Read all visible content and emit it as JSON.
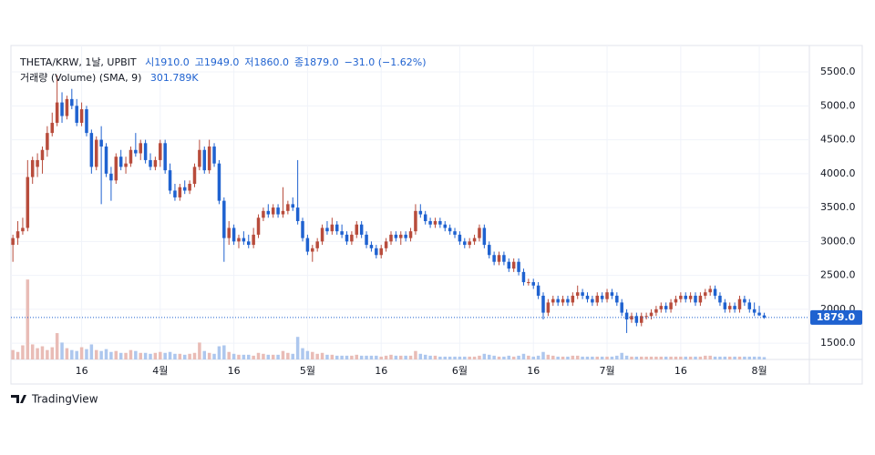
{
  "chart_data": {
    "type": "candlestick",
    "title": "THETA/KRW, 1날, UPBIT",
    "ohlc_legend": [
      "시1910.0",
      "고1949.0",
      "저1860.0",
      "종1879.0",
      "−31.0 (−1.62%)"
    ],
    "volume_title": "거래량 (Volume) (SMA, 9)",
    "volume_sma": "301.789K",
    "brand": "TradingView",
    "up_color": "#b84c3c",
    "down_color": "#1f62d0",
    "volume_up_color": "#e9bcb6",
    "volume_down_color": "#adc7ee",
    "grid": true,
    "xlim": [
      -0.4,
      162.2
    ],
    "xticks": [
      {
        "value": 14,
        "label": "16"
      },
      {
        "value": 30,
        "label": "4월"
      },
      {
        "value": 45,
        "label": "16"
      },
      {
        "value": 60,
        "label": "5월"
      },
      {
        "value": 75,
        "label": "16"
      },
      {
        "value": 91,
        "label": "6월"
      },
      {
        "value": 106,
        "label": "16"
      },
      {
        "value": 121,
        "label": "7월"
      },
      {
        "value": 136,
        "label": "16"
      },
      {
        "value": 152,
        "label": "8월"
      }
    ],
    "ylim": [
      1260,
      5890
    ],
    "yticks": [
      {
        "value": 1500,
        "label": "1500.0"
      },
      {
        "value": 2000,
        "label": "2000.0"
      },
      {
        "value": 2500,
        "label": "2500.0"
      },
      {
        "value": 3000,
        "label": "3000.0"
      },
      {
        "value": 3500,
        "label": "3500.0"
      },
      {
        "value": 4000,
        "label": "4000.0"
      },
      {
        "value": 4500,
        "label": "4500.0"
      },
      {
        "value": 5000,
        "label": "5000.0"
      },
      {
        "value": 5500,
        "label": "5500.0"
      }
    ],
    "vlim": [
      0,
      9000
    ],
    "last_price": {
      "value": 1879,
      "label": "1879.0"
    },
    "open": [
      2950,
      3050,
      3150,
      3200,
      3950,
      4100,
      4200,
      4350,
      4600,
      4750,
      5050,
      4850,
      5100,
      5000,
      4750,
      4950,
      4600,
      4100,
      4500,
      4400,
      4000,
      3900,
      4250,
      4100,
      4150,
      4350,
      4300,
      4450,
      4200,
      4100,
      4200,
      4450,
      4050,
      3750,
      3650,
      3800,
      3750,
      3850,
      4100,
      4350,
      4050,
      4400,
      4150,
      3600,
      3050,
      3200,
      3000,
      3050,
      3000,
      2950,
      3100,
      3350,
      3450,
      3400,
      3500,
      3400,
      3450,
      3550,
      3500,
      3300,
      3050,
      2850,
      2900,
      3000,
      3200,
      3150,
      3250,
      3150,
      3100,
      3000,
      3100,
      3250,
      3100,
      2950,
      2900,
      2800,
      2900,
      3000,
      3100,
      3050,
      3100,
      3050,
      3150,
      3450,
      3400,
      3300,
      3250,
      3300,
      3250,
      3200,
      3150,
      3100,
      3000,
      2950,
      3000,
      3050,
      3200,
      2950,
      2800,
      2700,
      2800,
      2700,
      2600,
      2700,
      2550,
      2400,
      2400,
      2350,
      2200,
      1950,
      2100,
      2150,
      2100,
      2150,
      2100,
      2200,
      2250,
      2200,
      2150,
      2100,
      2200,
      2150,
      2250,
      2200,
      2100,
      1950,
      1850,
      1900,
      1800,
      1900,
      1900,
      1950,
      2000,
      2050,
      2000,
      2100,
      2150,
      2200,
      2150,
      2200,
      2100,
      2200,
      2250,
      2300,
      2200,
      2100,
      2000,
      2050,
      2000,
      2150,
      2100,
      2000,
      1950,
      1910
    ],
    "high": [
      3100,
      3300,
      3350,
      4200,
      4250,
      4300,
      4400,
      4700,
      4900,
      5450,
      5200,
      5150,
      5250,
      5100,
      5050,
      5000,
      4650,
      4550,
      4700,
      4450,
      4100,
      4300,
      4350,
      4250,
      4400,
      4600,
      4500,
      4500,
      4300,
      4250,
      4500,
      4500,
      4150,
      3850,
      3850,
      3900,
      3900,
      4150,
      4500,
      4400,
      4500,
      4450,
      4200,
      3650,
      3300,
      3250,
      3100,
      3150,
      3100,
      3200,
      3400,
      3500,
      3550,
      3550,
      3550,
      3800,
      3600,
      3650,
      4200,
      3350,
      3100,
      2950,
      3050,
      3250,
      3300,
      3350,
      3300,
      3250,
      3150,
      3150,
      3300,
      3300,
      3150,
      3000,
      2950,
      2950,
      3050,
      3150,
      3150,
      3150,
      3150,
      3200,
      3550,
      3550,
      3450,
      3350,
      3350,
      3350,
      3300,
      3250,
      3200,
      3150,
      3050,
      3050,
      3100,
      3250,
      3250,
      3000,
      2850,
      2850,
      2850,
      2750,
      2750,
      2750,
      2600,
      2450,
      2450,
      2400,
      2250,
      2150,
      2200,
      2200,
      2200,
      2200,
      2250,
      2350,
      2300,
      2250,
      2200,
      2250,
      2250,
      2300,
      2300,
      2250,
      2150,
      2000,
      1950,
      1950,
      1950,
      1950,
      2000,
      2050,
      2100,
      2100,
      2150,
      2200,
      2250,
      2250,
      2250,
      2250,
      2250,
      2300,
      2350,
      2350,
      2250,
      2150,
      2100,
      2100,
      2200,
      2200,
      2150,
      2100,
      2050,
      1949
    ],
    "low": [
      2700,
      2950,
      3100,
      3150,
      3850,
      3950,
      4000,
      4250,
      4550,
      4700,
      4750,
      4800,
      4950,
      4700,
      4700,
      4550,
      4000,
      4050,
      3550,
      3950,
      3600,
      3850,
      4050,
      4000,
      4100,
      4250,
      4200,
      4150,
      4050,
      4050,
      4100,
      4000,
      3700,
      3600,
      3600,
      3700,
      3700,
      3800,
      4050,
      4000,
      4000,
      4100,
      3550,
      2700,
      2950,
      2950,
      2900,
      2950,
      2900,
      2900,
      3050,
      3300,
      3350,
      3350,
      3350,
      3350,
      3400,
      3450,
      3250,
      3000,
      2800,
      2700,
      2850,
      2950,
      3100,
      3100,
      3100,
      3050,
      2950,
      2950,
      3050,
      3050,
      2900,
      2850,
      2750,
      2750,
      2850,
      2950,
      3000,
      2950,
      3000,
      3000,
      3100,
      3350,
      3250,
      3200,
      3200,
      3200,
      3150,
      3100,
      3050,
      2950,
      2900,
      2900,
      2950,
      3000,
      2900,
      2750,
      2650,
      2650,
      2650,
      2550,
      2550,
      2500,
      2350,
      2350,
      2300,
      2150,
      1850,
      1900,
      2050,
      2050,
      2050,
      2050,
      2050,
      2150,
      2150,
      2100,
      2050,
      2050,
      2100,
      2100,
      2150,
      2050,
      1900,
      1650,
      1800,
      1750,
      1750,
      1850,
      1850,
      1900,
      1950,
      1950,
      1950,
      2050,
      2100,
      2100,
      2100,
      2050,
      2050,
      2150,
      2200,
      2150,
      2050,
      1950,
      1950,
      1950,
      1950,
      2050,
      1950,
      1900,
      1900,
      1860
    ],
    "close": [
      3050,
      3150,
      3200,
      3950,
      4200,
      4200,
      4350,
      4600,
      4750,
      5050,
      4850,
      5100,
      5000,
      4750,
      4950,
      4600,
      4100,
      4500,
      4400,
      4000,
      3900,
      4250,
      4100,
      4150,
      4350,
      4300,
      4450,
      4200,
      4100,
      4200,
      4450,
      4050,
      3750,
      3650,
      3800,
      3750,
      3850,
      4100,
      4350,
      4050,
      4400,
      4150,
      3600,
      3050,
      3200,
      3000,
      3050,
      3000,
      2950,
      3100,
      3350,
      3450,
      3400,
      3500,
      3400,
      3450,
      3550,
      3500,
      3300,
      3050,
      2850,
      2900,
      3000,
      3200,
      3150,
      3250,
      3150,
      3100,
      3000,
      3100,
      3250,
      3100,
      2950,
      2900,
      2800,
      2900,
      3000,
      3100,
      3050,
      3100,
      3050,
      3150,
      3450,
      3400,
      3300,
      3250,
      3300,
      3250,
      3200,
      3150,
      3100,
      3000,
      2950,
      3000,
      3050,
      3200,
      2950,
      2800,
      2700,
      2800,
      2700,
      2600,
      2700,
      2550,
      2400,
      2400,
      2350,
      2200,
      1950,
      2100,
      2150,
      2100,
      2150,
      2100,
      2200,
      2250,
      2200,
      2150,
      2100,
      2200,
      2150,
      2250,
      2200,
      2100,
      1950,
      1850,
      1900,
      1800,
      1900,
      1900,
      1950,
      2000,
      2050,
      2000,
      2100,
      2150,
      2200,
      2150,
      2200,
      2100,
      2200,
      2250,
      2300,
      2200,
      2100,
      2000,
      2050,
      2000,
      2150,
      2100,
      2000,
      1950,
      1910,
      1879
    ],
    "volume": [
      1000,
      800,
      1500,
      8500,
      1600,
      1200,
      1400,
      1000,
      1300,
      2800,
      1800,
      1200,
      1000,
      900,
      1300,
      1100,
      1600,
      1000,
      900,
      1100,
      800,
      900,
      700,
      700,
      1000,
      900,
      700,
      700,
      600,
      700,
      800,
      700,
      800,
      600,
      600,
      500,
      600,
      700,
      1800,
      900,
      700,
      600,
      1400,
      1500,
      800,
      600,
      500,
      500,
      500,
      400,
      700,
      600,
      500,
      500,
      500,
      900,
      700,
      600,
      2400,
      1200,
      900,
      800,
      600,
      700,
      500,
      500,
      400,
      400,
      400,
      400,
      500,
      400,
      400,
      400,
      400,
      300,
      400,
      500,
      400,
      400,
      400,
      400,
      900,
      600,
      500,
      400,
      400,
      300,
      300,
      300,
      300,
      300,
      300,
      300,
      300,
      400,
      600,
      500,
      400,
      300,
      300,
      400,
      300,
      400,
      600,
      400,
      300,
      400,
      800,
      500,
      400,
      300,
      300,
      300,
      400,
      400,
      300,
      300,
      300,
      300,
      300,
      300,
      300,
      400,
      700,
      400,
      300,
      300,
      300,
      300,
      300,
      300,
      300,
      300,
      300,
      300,
      300,
      300,
      300,
      300,
      300,
      400,
      400,
      300,
      300,
      300,
      300,
      300,
      300,
      300,
      300,
      300,
      300,
      250
    ]
  }
}
